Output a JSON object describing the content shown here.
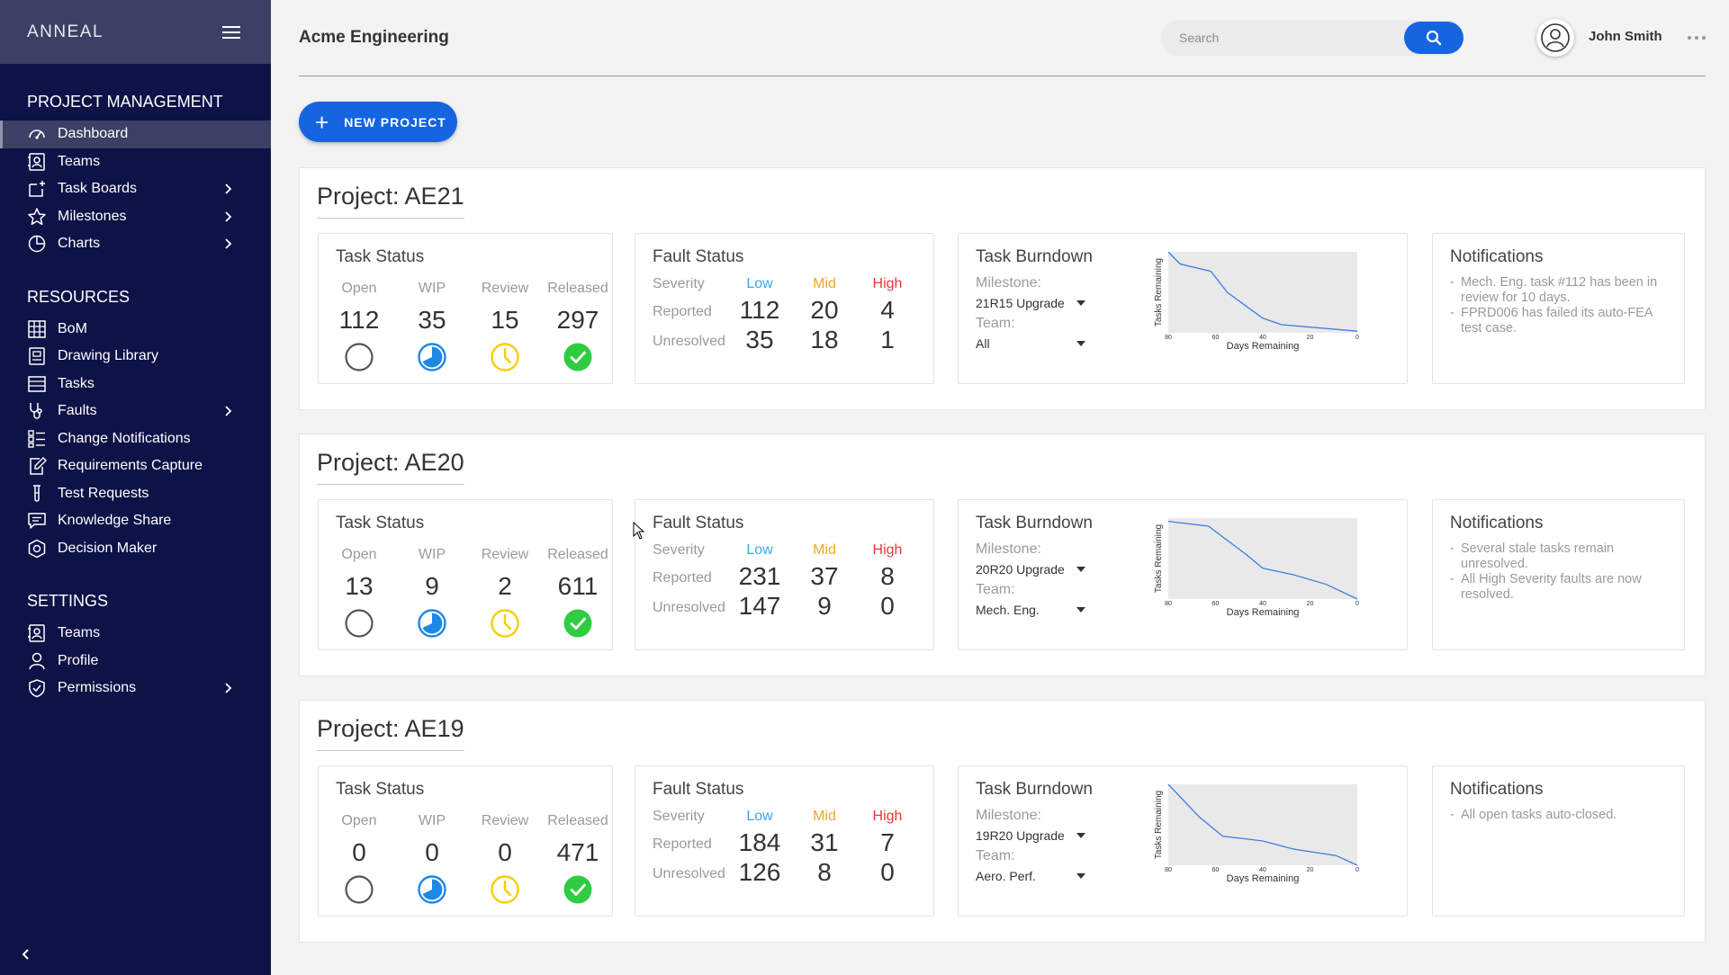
{
  "sidebar": {
    "brand": "ANNEAL",
    "sections": [
      {
        "title": "PROJECT MANAGEMENT",
        "items": [
          {
            "label": "Dashboard",
            "icon": "dashboard-gauge-icon",
            "active": true,
            "chevron": false
          },
          {
            "label": "Teams",
            "icon": "teams-contact-icon",
            "chevron": false
          },
          {
            "label": "Task Boards",
            "icon": "task-board-icon",
            "chevron": true
          },
          {
            "label": "Milestones",
            "icon": "star-icon",
            "chevron": true
          },
          {
            "label": "Charts",
            "icon": "pie-chart-icon",
            "chevron": true
          }
        ]
      },
      {
        "title": "RESOURCES",
        "items": [
          {
            "label": "BoM",
            "icon": "grid-table-icon",
            "chevron": false
          },
          {
            "label": "Drawing Library",
            "icon": "library-icon",
            "chevron": false
          },
          {
            "label": "Tasks",
            "icon": "list-icon",
            "chevron": false
          },
          {
            "label": "Faults",
            "icon": "stethoscope-icon",
            "chevron": true
          },
          {
            "label": "Change Notifications",
            "icon": "checklist-icon",
            "chevron": false
          },
          {
            "label": "Requirements Capture",
            "icon": "edit-document-icon",
            "chevron": false
          },
          {
            "label": "Test Requests",
            "icon": "test-tube-icon",
            "chevron": false
          },
          {
            "label": "Knowledge Share",
            "icon": "chat-bubble-icon",
            "chevron": false
          },
          {
            "label": "Decision Maker",
            "icon": "decision-badge-icon",
            "chevron": false
          }
        ]
      },
      {
        "title": "SETTINGS",
        "items": [
          {
            "label": "Teams",
            "icon": "teams-contact-icon",
            "chevron": false
          },
          {
            "label": "Profile",
            "icon": "person-icon",
            "chevron": false
          },
          {
            "label": "Permissions",
            "icon": "shield-check-icon",
            "chevron": true
          }
        ]
      }
    ]
  },
  "header": {
    "company": "Acme Engineering",
    "search_placeholder": "Search",
    "user_name": "John Smith"
  },
  "new_project_label": "NEW PROJECT",
  "colors": {
    "sidebar_bg": "#0d1247",
    "sidebar_active": "#3c4064",
    "primary": "#1565e0",
    "low": "#3aa6e8",
    "mid": "#f5a623",
    "high": "#e53935",
    "released": "#2ecc40",
    "review": "#f5d000",
    "wip": "#1e88e5"
  },
  "labels": {
    "task_status": "Task Status",
    "fault_status": "Fault Status",
    "task_burndown": "Task Burndown",
    "notifications": "Notifications",
    "open": "Open",
    "wip": "WIP",
    "review": "Review",
    "released": "Released",
    "severity": "Severity",
    "low": "Low",
    "mid": "Mid",
    "high": "High",
    "reported": "Reported",
    "unresolved": "Unresolved",
    "milestone": "Milestone:",
    "team": "Team:"
  },
  "projects": [
    {
      "title": "Project: AE21",
      "task_status": {
        "open": "112",
        "wip": "35",
        "review": "15",
        "released": "297"
      },
      "fault_status": {
        "reported": [
          "112",
          "20",
          "4"
        ],
        "unresolved": [
          "35",
          "18",
          "1"
        ]
      },
      "burndown": {
        "milestone": "21R15 Upgrade",
        "team": "All"
      },
      "notifications": [
        "Mech. Eng. task #112 has been in review for 10 days.",
        "FPRD006 has failed its auto-FEA test case."
      ]
    },
    {
      "title": "Project: AE20",
      "task_status": {
        "open": "13",
        "wip": "9",
        "review": "2",
        "released": "611"
      },
      "fault_status": {
        "reported": [
          "231",
          "37",
          "8"
        ],
        "unresolved": [
          "147",
          "9",
          "0"
        ]
      },
      "burndown": {
        "milestone": "20R20 Upgrade",
        "team": "Mech. Eng."
      },
      "notifications": [
        "Several stale tasks remain unresolved.",
        "All High Severity faults are now resolved."
      ]
    },
    {
      "title": "Project: AE19",
      "task_status": {
        "open": "0",
        "wip": "0",
        "review": "0",
        "released": "471"
      },
      "fault_status": {
        "reported": [
          "184",
          "31",
          "7"
        ],
        "unresolved": [
          "126",
          "8",
          "0"
        ]
      },
      "burndown": {
        "milestone": "19R20 Upgrade",
        "team": "Aero. Perf."
      },
      "notifications": [
        "All open tasks auto-closed."
      ]
    }
  ],
  "chart_data": [
    {
      "type": "line",
      "xlabel": "Days Remaining",
      "ylabel": "Tasks Remaining",
      "xlim": [
        80,
        0
      ],
      "x_ticks": [
        "80",
        "60",
        "40",
        "20",
        "0"
      ],
      "x": [
        80,
        75,
        62,
        55,
        40,
        32,
        0
      ],
      "y": [
        100,
        85,
        76,
        50,
        18,
        10,
        2
      ],
      "ylim": [
        0,
        100
      ]
    },
    {
      "type": "line",
      "xlabel": "Days Remaining",
      "ylabel": "Tasks Remaining",
      "xlim": [
        80,
        0
      ],
      "x_ticks": [
        "80",
        "60",
        "40",
        "20",
        "0"
      ],
      "x": [
        80,
        63,
        47,
        40,
        27,
        13,
        0
      ],
      "y": [
        96,
        90,
        55,
        38,
        30,
        18,
        0
      ],
      "ylim": [
        0,
        100
      ]
    },
    {
      "type": "line",
      "xlabel": "Days Remaining",
      "ylabel": "Tasks Remaining",
      "xlim": [
        80,
        0
      ],
      "x_ticks": [
        "80",
        "60",
        "40",
        "20",
        "0"
      ],
      "x": [
        80,
        67,
        57,
        40,
        27,
        9,
        0
      ],
      "y": [
        100,
        60,
        36,
        30,
        20,
        12,
        0
      ],
      "ylim": [
        0,
        100
      ]
    }
  ]
}
